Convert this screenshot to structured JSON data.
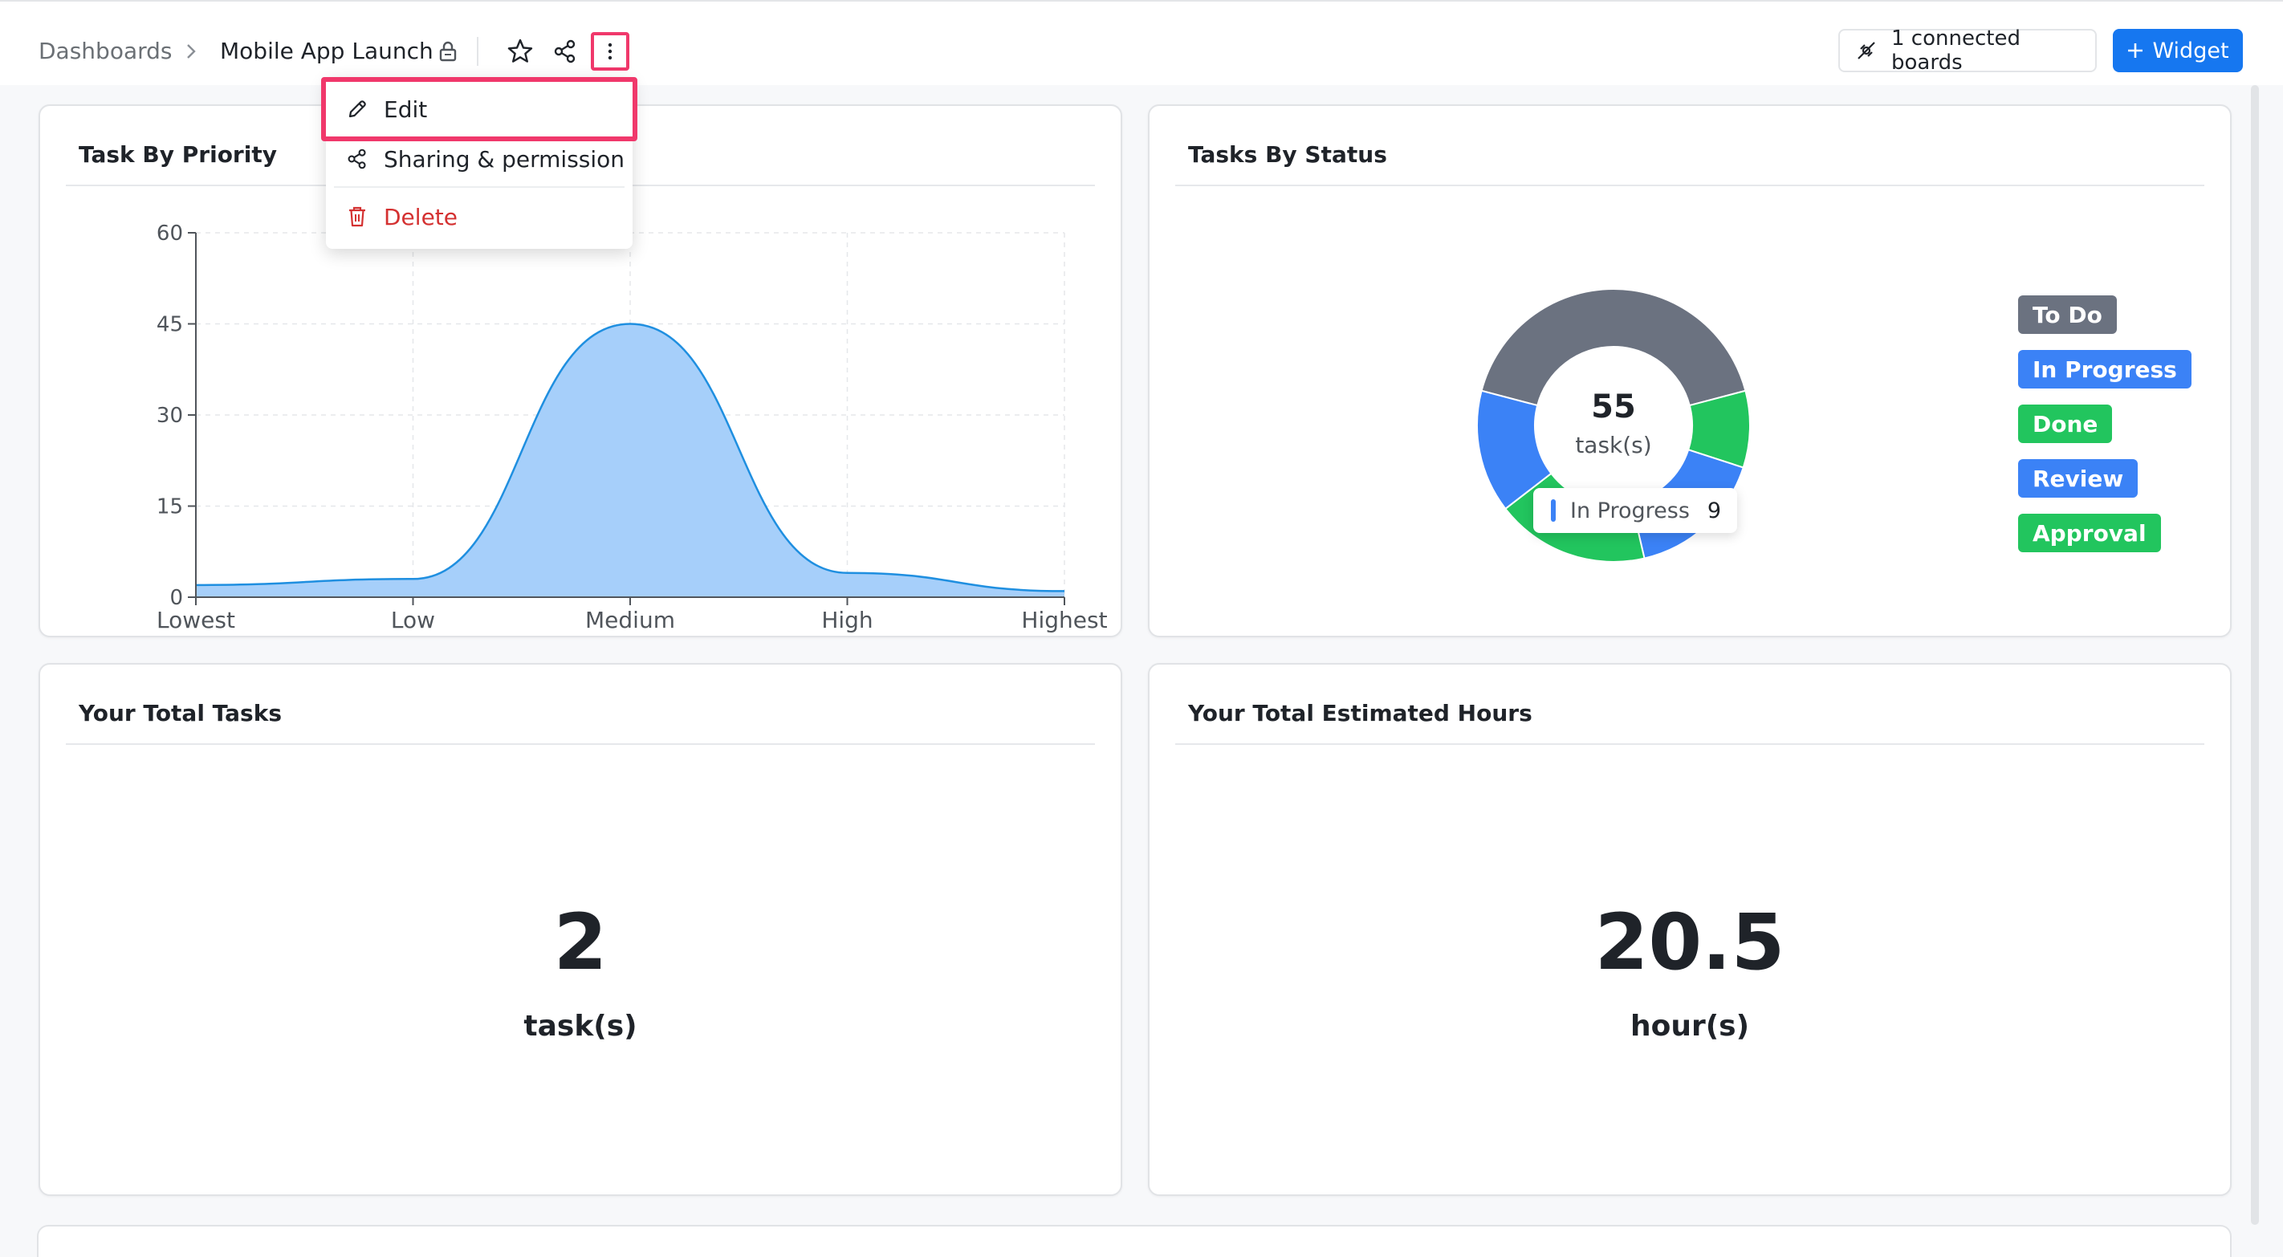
{
  "breadcrumb": {
    "root": "Dashboards",
    "current": "Mobile App Launch"
  },
  "header": {
    "connected_boards": "1 connected boards",
    "widget_button": "Widget"
  },
  "menu": {
    "items": [
      {
        "label": "Edit",
        "icon": "pencil-icon"
      },
      {
        "label": "Sharing & permission",
        "icon": "share-icon"
      },
      {
        "label": "Delete",
        "icon": "trash-icon"
      }
    ]
  },
  "widgets": {
    "priority": {
      "title": "Task By Priority"
    },
    "status": {
      "title": "Tasks By Status",
      "total": "55",
      "total_unit": "task(s)",
      "tooltip_label": "In Progress",
      "tooltip_value": "9",
      "legend": [
        {
          "label": "To Do",
          "color": "#6b7280"
        },
        {
          "label": "In Progress",
          "color": "#3b82f6"
        },
        {
          "label": "Done",
          "color": "#22c55e"
        },
        {
          "label": "Review",
          "color": "#3b82f6"
        },
        {
          "label": "Approval",
          "color": "#22c55e"
        }
      ]
    },
    "total_tasks": {
      "title": "Your Total Tasks",
      "value": "2",
      "unit": "task(s)"
    },
    "total_hours": {
      "title": "Your Total Estimated Hours",
      "value": "20.5",
      "unit": "hour(s)"
    }
  },
  "chart_data": [
    {
      "type": "area",
      "title": "Task By Priority",
      "categories": [
        "Lowest",
        "Low",
        "Medium",
        "High",
        "Highest"
      ],
      "values": [
        2,
        3,
        45,
        4,
        1
      ],
      "ylim": [
        0,
        60
      ],
      "yticks": [
        "0",
        "15",
        "30",
        "45",
        "60"
      ],
      "grid": true,
      "color": "#a6cffa",
      "line_color": "#1f8fe0"
    },
    {
      "type": "pie",
      "title": "Tasks By Status",
      "categories": [
        "To Do",
        "Done",
        "In Progress",
        "Approval",
        "Review"
      ],
      "values": [
        23,
        5,
        9,
        10,
        8
      ],
      "colors": [
        "#6b7280",
        "#22c55e",
        "#3b82f6",
        "#22c55e",
        "#3b82f6"
      ]
    }
  ]
}
